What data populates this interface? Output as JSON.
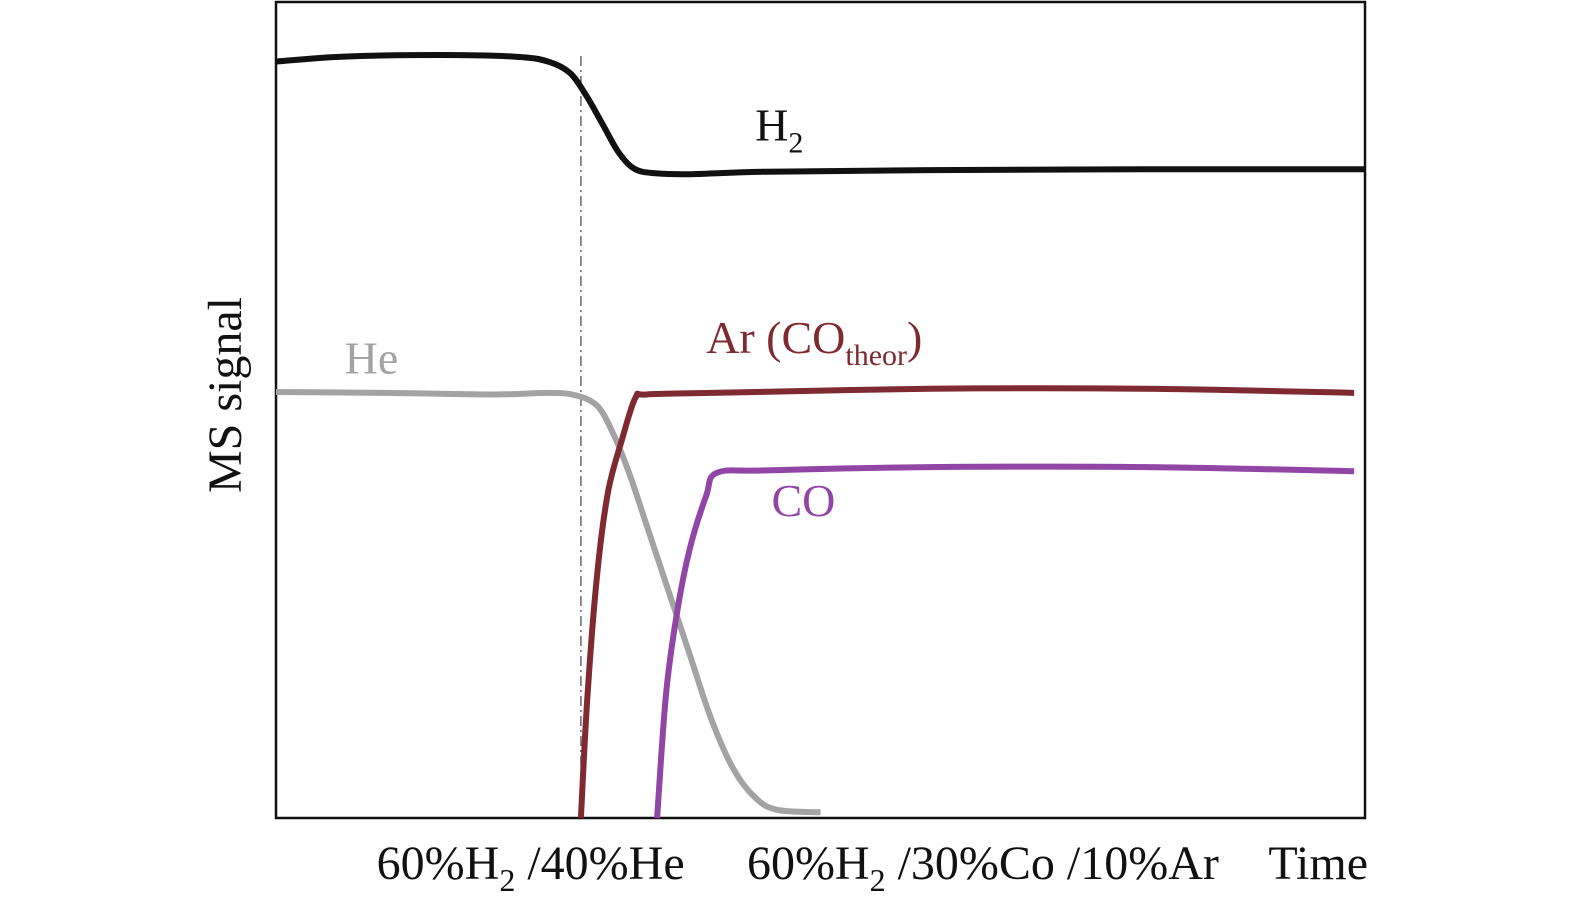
{
  "chart_data": {
    "type": "line",
    "title": "",
    "xlabel": "Time",
    "ylabel": "MS signal",
    "xlim": [
      0,
      100
    ],
    "ylim": [
      0,
      100
    ],
    "grid": false,
    "ticks_visible": false,
    "phase_switch_x": 28,
    "phase_labels": [
      {
        "text": "60%H",
        "sub": "2",
        "rest": " /40%He",
        "x": 12
      },
      {
        "text": "60%H",
        "sub": "2",
        "rest": " /30%Co /10%Ar",
        "x": 46
      }
    ],
    "series": [
      {
        "name": "H",
        "name_sub": "2",
        "color": "#111111",
        "label_at": [
          44,
          83
        ],
        "points": [
          [
            0,
            92.7
          ],
          [
            6,
            93.3
          ],
          [
            15,
            93.5
          ],
          [
            22,
            93.3
          ],
          [
            25,
            92.7
          ],
          [
            27,
            91.3
          ],
          [
            28.5,
            88.5
          ],
          [
            30,
            85
          ],
          [
            31.5,
            81.5
          ],
          [
            33,
            79.5
          ],
          [
            35,
            79
          ],
          [
            38,
            78.9
          ],
          [
            45,
            79.2
          ],
          [
            60,
            79.4
          ],
          [
            80,
            79.5
          ],
          [
            100,
            79.5
          ]
        ]
      },
      {
        "name": "He",
        "color": "#a3a3a3",
        "label_at": [
          6.3,
          54.5
        ],
        "points": [
          [
            0,
            52.2
          ],
          [
            10,
            52.1
          ],
          [
            20,
            51.9
          ],
          [
            25,
            52.1
          ],
          [
            27.5,
            51.8
          ],
          [
            29.5,
            50.5
          ],
          [
            31,
            47
          ],
          [
            32.5,
            42
          ],
          [
            34,
            36
          ],
          [
            36,
            28
          ],
          [
            38,
            20
          ],
          [
            40,
            12
          ],
          [
            42,
            6
          ],
          [
            44,
            2.5
          ],
          [
            46,
            1
          ],
          [
            50,
            0.7
          ]
        ]
      },
      {
        "name": "Ar (CO",
        "name_sub": "theor",
        "name_suffix": ")",
        "color": "#7e2a30",
        "label_at": [
          39.5,
          57
        ],
        "points": [
          [
            28,
            0
          ],
          [
            28.6,
            15
          ],
          [
            29.5,
            30
          ],
          [
            30.5,
            40
          ],
          [
            31.8,
            46.5
          ],
          [
            33,
            51.5
          ],
          [
            34,
            51.9
          ],
          [
            40,
            52.1
          ],
          [
            60,
            52.6
          ],
          [
            80,
            52.6
          ],
          [
            99,
            52.1
          ]
        ]
      },
      {
        "name": "CO",
        "color": "#9145a5",
        "label_at": [
          45.5,
          37
        ],
        "points": [
          [
            35,
            0
          ],
          [
            35.8,
            15
          ],
          [
            36.8,
            25
          ],
          [
            38,
            33
          ],
          [
            39.5,
            39.5
          ],
          [
            40.5,
            42.3
          ],
          [
            45,
            42.6
          ],
          [
            60,
            43
          ],
          [
            80,
            43
          ],
          [
            99,
            42.5
          ]
        ]
      }
    ]
  }
}
